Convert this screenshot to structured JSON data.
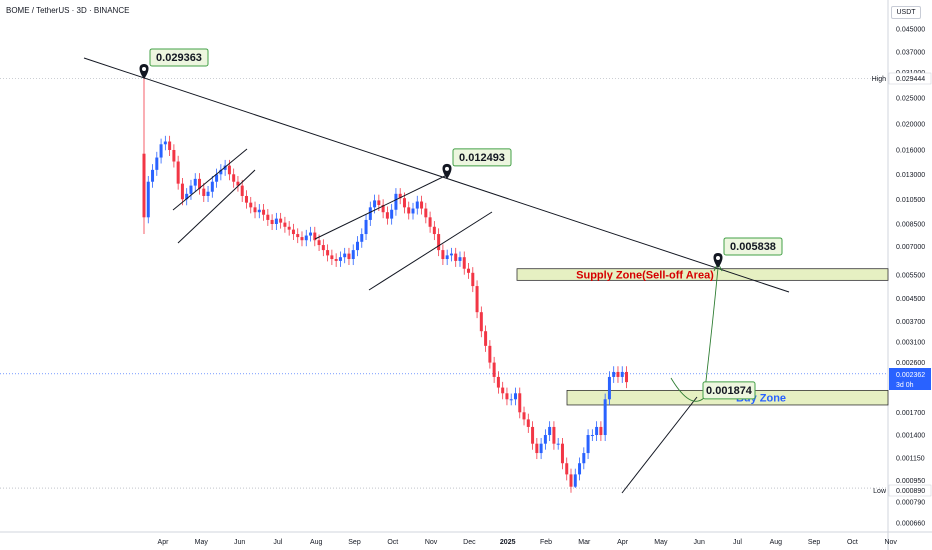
{
  "header": {
    "symbol": "BOME / TetherUS · 3D · BINANCE",
    "unit": "USDT"
  },
  "colors": {
    "up": "#2962ff",
    "down": "#f23645",
    "zone_fill": "#e6f0c2",
    "zone_border": "#333333",
    "supply_label": "#d50000",
    "buy_label": "#2962ff",
    "callout_fill": "#edf6df",
    "callout_border": "#43a047",
    "current_price": "#2962ff"
  },
  "chart_data": {
    "type": "candlestick",
    "y_scale": "log",
    "y_ticks": [
      "0.045000",
      "0.037000",
      "0.031000",
      "0.025000",
      "0.020000",
      "0.016000",
      "0.013000",
      "0.010500",
      "0.008500",
      "0.007000",
      "0.005500",
      "0.004500",
      "0.003700",
      "0.003100",
      "0.002600",
      "0.002100",
      "0.001700",
      "0.001400",
      "0.001150",
      "0.000950",
      "0.000790",
      "0.000660"
    ],
    "x_ticks": [
      "Apr",
      "May",
      "Jun",
      "Jul",
      "Aug",
      "Sep",
      "Oct",
      "Nov",
      "Dec",
      "2025",
      "Feb",
      "Mar",
      "Apr",
      "May",
      "Jun",
      "Jul",
      "Aug",
      "Sep",
      "Oct",
      "Nov"
    ],
    "high": {
      "label": "High",
      "value": "0.029444"
    },
    "low": {
      "label": "Low",
      "value": "0.000890"
    },
    "current": {
      "value": "0.002362",
      "countdown": "3d 0h"
    },
    "annotations": [
      {
        "text": "0.029363",
        "price": 0.029363
      },
      {
        "text": "0.012493",
        "price": 0.012493
      },
      {
        "text": "0.005838",
        "price": 0.005838
      },
      {
        "text": "0.001874",
        "price": 0.001874
      }
    ],
    "zones": [
      {
        "label": "Supply Zone(Sell-off Area)",
        "from": 0.00525,
        "to": 0.0058
      },
      {
        "label": "Buy Zone",
        "from": 0.00181,
        "to": 0.00205
      }
    ],
    "closes": [
      0.009,
      0.0122,
      0.0135,
      0.015,
      0.0168,
      0.0172,
      0.016,
      0.0145,
      0.012,
      0.0105,
      0.011,
      0.0118,
      0.0125,
      0.0115,
      0.0108,
      0.0112,
      0.0122,
      0.013,
      0.0135,
      0.014,
      0.013,
      0.0122,
      0.0118,
      0.0108,
      0.0102,
      0.0098,
      0.0094,
      0.0096,
      0.0092,
      0.0088,
      0.0085,
      0.0089,
      0.0086,
      0.0083,
      0.0081,
      0.0078,
      0.0076,
      0.0074,
      0.0077,
      0.0079,
      0.0074,
      0.0071,
      0.0068,
      0.0065,
      0.0063,
      0.0062,
      0.0064,
      0.0066,
      0.0063,
      0.0068,
      0.0073,
      0.0078,
      0.0088,
      0.0098,
      0.0104,
      0.01,
      0.0094,
      0.0089,
      0.0096,
      0.011,
      0.0106,
      0.0098,
      0.0093,
      0.0097,
      0.0103,
      0.0097,
      0.009,
      0.0083,
      0.0078,
      0.0068,
      0.0063,
      0.0065,
      0.0066,
      0.0062,
      0.0064,
      0.0058,
      0.0056,
      0.005,
      0.004,
      0.0034,
      0.003,
      0.0026,
      0.0023,
      0.0021,
      0.002,
      0.0019,
      0.0019,
      0.002,
      0.0017,
      0.0016,
      0.0015,
      0.0013,
      0.0012,
      0.0013,
      0.0014,
      0.0015,
      0.0013,
      0.0013,
      0.0011,
      0.001,
      0.0009,
      0.001,
      0.0011,
      0.0012,
      0.0014,
      0.0014,
      0.0015,
      0.0014,
      0.0019,
      0.0023,
      0.0024,
      0.0023,
      0.0024,
      0.0022
    ]
  }
}
